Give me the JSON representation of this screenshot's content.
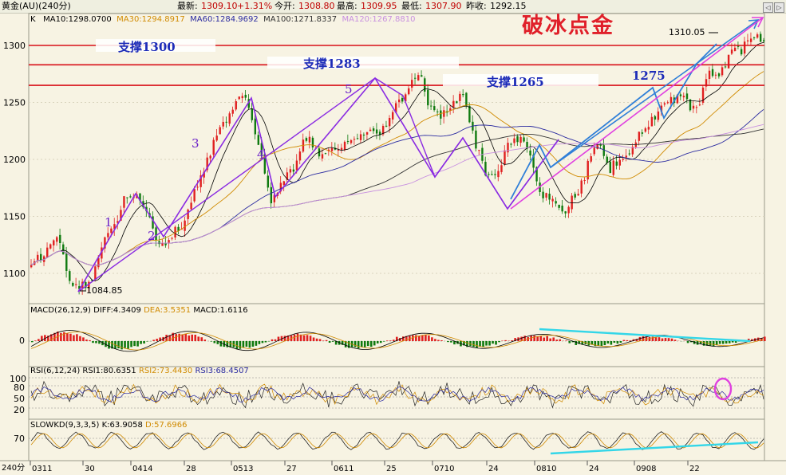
{
  "header": {
    "instrument": "黄金(AU)(240分)",
    "latest_label": "最新:",
    "latest_value": "1309.10",
    "change": "+1.31%",
    "open_label": "今开:",
    "open_value": "1308.80",
    "high_label": "最高:",
    "high_value": "1309.95",
    "low_label": "最低:",
    "low_value": "1307.90",
    "prev_close_label": "昨收:",
    "prev_close_value": "1292.15"
  },
  "title": "破冰点金",
  "ma_line": {
    "k": "K",
    "ma10": "MA10:1298.0700",
    "ma30": "MA30:1294.8917",
    "ma60": "MA60:1284.9692",
    "ma100": "MA100:1271.8337",
    "ma120": "MA120:1267.8810"
  },
  "colors": {
    "background": "#f7f3e3",
    "up": "#e02020",
    "down": "#0f7a0f",
    "support": "#d81018",
    "wave": "#8a2be2",
    "trend": "#2f7fd8",
    "cyan": "#33d6e8",
    "magenta": "#e040e0",
    "ma10": "#000000",
    "ma30": "#d08a00",
    "ma60": "#2a2aa0",
    "ma100": "#333333",
    "ma120": "#c890e0"
  },
  "supports": [
    {
      "label": "支撑1300",
      "value": 1300
    },
    {
      "label": "支撑1283",
      "value": 1283
    },
    {
      "label": "支撑1265",
      "value": 1265
    }
  ],
  "annotations": {
    "low_label": "1084.85",
    "high_label": "1310.05",
    "level_1275": "1275",
    "waves": [
      "1",
      "2",
      "3",
      "4",
      "5"
    ]
  },
  "macd": {
    "label": "MACD(26,12,9)",
    "diff": "DIFF:4.3409",
    "dea": "DEA:3.5351",
    "macd": "MACD:1.6116",
    "zero_tick": "0"
  },
  "rsi": {
    "label": "RSI(6,12,24)",
    "rsi1": "RSI1:80.6351",
    "rsi2": "RSI2:73.4430",
    "rsi3": "RSI3:68.4507",
    "ticks": [
      "100",
      "80",
      "50",
      "20"
    ]
  },
  "kd": {
    "label": "SLOWKD(9,3,3,5)",
    "k": "K:63.9058",
    "d": "D:57.6966",
    "tick": "70"
  },
  "x_axis": {
    "period": "240分",
    "labels": [
      "0311",
      "30",
      "0414",
      "28",
      "0513",
      "27",
      "0611",
      "25",
      "0710",
      "24",
      "0810",
      "24",
      "0908",
      "22"
    ]
  },
  "chart_data": {
    "type": "candlestick",
    "y_ticks": [
      1100,
      1150,
      1200,
      1250,
      1300
    ],
    "ylim": [
      1070,
      1330
    ],
    "price_path_waypoints": [
      {
        "pos": 0.0,
        "price": 1105
      },
      {
        "pos": 0.03,
        "price": 1128
      },
      {
        "pos": 0.065,
        "price": 1086
      },
      {
        "pos": 0.14,
        "price": 1170
      },
      {
        "pos": 0.18,
        "price": 1128
      },
      {
        "pos": 0.29,
        "price": 1253
      },
      {
        "pos": 0.33,
        "price": 1168
      },
      {
        "pos": 0.38,
        "price": 1215
      },
      {
        "pos": 0.4,
        "price": 1205
      },
      {
        "pos": 0.47,
        "price": 1225
      },
      {
        "pos": 0.53,
        "price": 1270
      },
      {
        "pos": 0.555,
        "price": 1235
      },
      {
        "pos": 0.585,
        "price": 1253
      },
      {
        "pos": 0.625,
        "price": 1185
      },
      {
        "pos": 0.665,
        "price": 1218
      },
      {
        "pos": 0.705,
        "price": 1165
      },
      {
        "pos": 0.73,
        "price": 1157
      },
      {
        "pos": 0.775,
        "price": 1210
      },
      {
        "pos": 0.79,
        "price": 1193
      },
      {
        "pos": 0.88,
        "price": 1255
      },
      {
        "pos": 0.905,
        "price": 1245
      },
      {
        "pos": 0.93,
        "price": 1275
      },
      {
        "pos": 0.975,
        "price": 1300
      },
      {
        "pos": 1.0,
        "price": 1309
      }
    ]
  }
}
